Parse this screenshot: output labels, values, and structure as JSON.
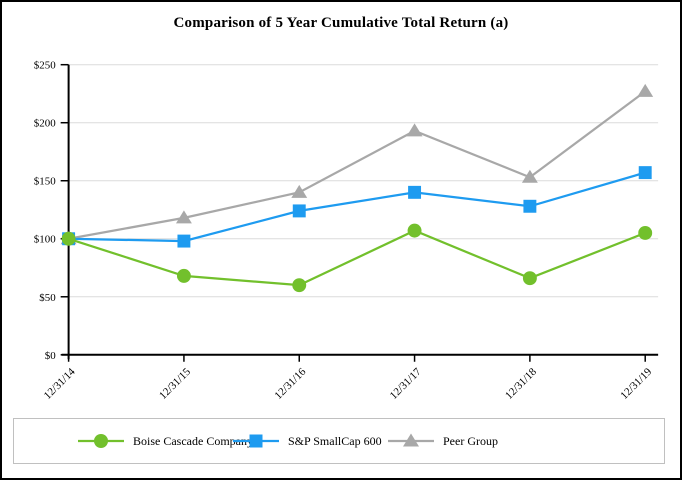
{
  "page": {
    "title": "Comparison of 5 Year Cumulative Total Return (a)"
  },
  "chart_data": {
    "type": "line",
    "title": "Comparison of 5 Year Cumulative Total Return (a)",
    "categories": [
      "12/31/14",
      "12/31/15",
      "12/31/16",
      "12/31/17",
      "12/31/18",
      "12/31/19"
    ],
    "series": [
      {
        "name": "Boise Cascade Company",
        "marker": "circle",
        "color": "#72C02C",
        "values": [
          100,
          68,
          60,
          107,
          66,
          105
        ]
      },
      {
        "name": "S&P SmallCap 600",
        "marker": "square",
        "color": "#1E9BF0",
        "values": [
          100,
          98,
          124,
          140,
          128,
          157
        ]
      },
      {
        "name": "Peer Group",
        "marker": "triangle",
        "color": "#A8A8A8",
        "values": [
          100,
          118,
          140,
          193,
          153,
          227
        ]
      }
    ],
    "ylim": [
      0,
      250
    ],
    "yticks": [
      {
        "value": 0,
        "label": "$0"
      },
      {
        "value": 50,
        "label": "$50"
      },
      {
        "value": 100,
        "label": "$100"
      },
      {
        "value": 150,
        "label": "$150"
      },
      {
        "value": 200,
        "label": "$200"
      },
      {
        "value": 250,
        "label": "$250"
      }
    ],
    "xlabel": "",
    "ylabel": "",
    "grid": "horizontal",
    "gridline_color": "#DCDCDC",
    "axis_color": "#000000",
    "legend_position": "bottom"
  }
}
